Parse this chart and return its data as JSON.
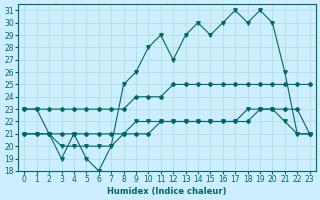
{
  "xlabel": "Humidex (Indice chaleur)",
  "ylabel": "",
  "xlim": [
    -0.5,
    23.5
  ],
  "ylim": [
    18,
    31.5
  ],
  "xticks": [
    0,
    1,
    2,
    3,
    4,
    5,
    6,
    7,
    8,
    9,
    10,
    11,
    12,
    13,
    14,
    15,
    16,
    17,
    18,
    19,
    20,
    21,
    22,
    23
  ],
  "yticks": [
    18,
    19,
    20,
    21,
    22,
    23,
    24,
    25,
    26,
    27,
    28,
    29,
    30,
    31
  ],
  "bg_color": "#cceeff",
  "grid_color": "#aaddcc",
  "line_color": "#006666",
  "line1_x": [
    0,
    1,
    2,
    3,
    4,
    5,
    6,
    7,
    8,
    9,
    10,
    11,
    12,
    13,
    14,
    15,
    16,
    17,
    18,
    19,
    20,
    21,
    22,
    23
  ],
  "line1_y": [
    23,
    23,
    21,
    19,
    21,
    19,
    18,
    20,
    25,
    26,
    28,
    29,
    27,
    29,
    30,
    29,
    30,
    31,
    30,
    31,
    30,
    26,
    21,
    21
  ],
  "line2_x": [
    0,
    1,
    2,
    3,
    4,
    5,
    6,
    7,
    8,
    9,
    10,
    11,
    12,
    13,
    14,
    15,
    16,
    17,
    18,
    19,
    20,
    21,
    22,
    23
  ],
  "line2_y": [
    21,
    21,
    21,
    20,
    20,
    20,
    20,
    20,
    21,
    22,
    22,
    22,
    22,
    22,
    22,
    22,
    22,
    22,
    23,
    23,
    23,
    22,
    21,
    21
  ],
  "line3_x": [
    0,
    1,
    2,
    3,
    4,
    5,
    6,
    7,
    8,
    9,
    10,
    11,
    12,
    13,
    14,
    15,
    16,
    17,
    18,
    19,
    20,
    21,
    22,
    23
  ],
  "line3_y": [
    23,
    23,
    23,
    23,
    23,
    23,
    23,
    23,
    23,
    24,
    24,
    24,
    25,
    25,
    25,
    25,
    25,
    25,
    25,
    25,
    25,
    25,
    25,
    25
  ],
  "line4_x": [
    0,
    1,
    2,
    3,
    4,
    5,
    6,
    7,
    8,
    9,
    10,
    11,
    12,
    13,
    14,
    15,
    16,
    17,
    18,
    19,
    20,
    21,
    22,
    23
  ],
  "line4_y": [
    21,
    21,
    21,
    21,
    21,
    21,
    21,
    21,
    21,
    21,
    21,
    22,
    22,
    22,
    22,
    22,
    22,
    22,
    22,
    23,
    23,
    23,
    23,
    21
  ]
}
